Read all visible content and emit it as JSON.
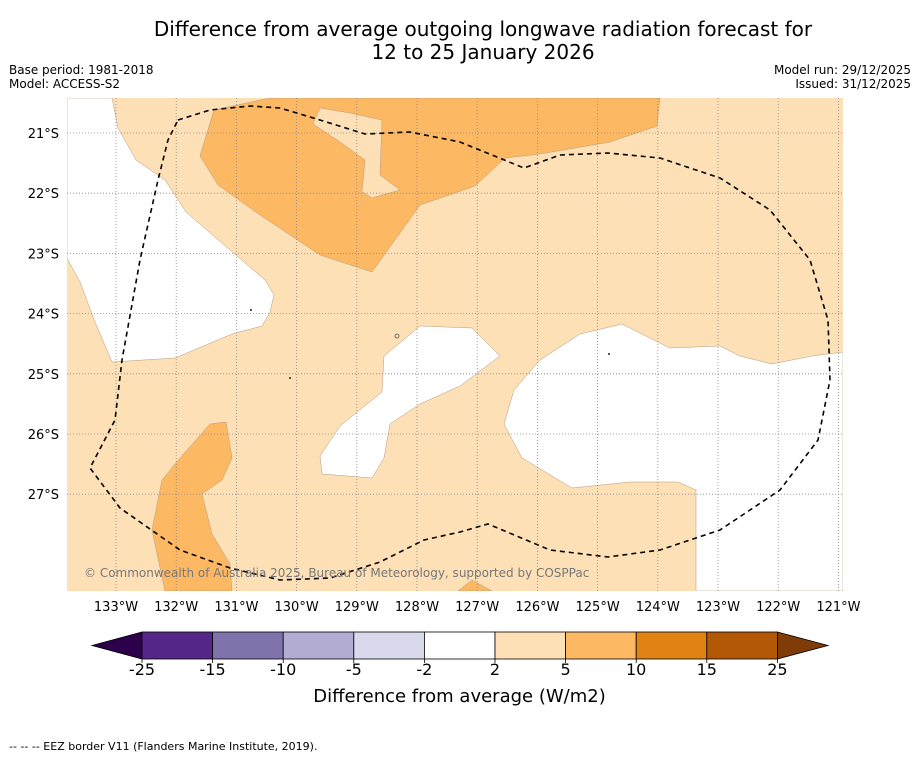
{
  "title_line1": "Difference from average outgoing longwave radiation forecast for",
  "title_line2": "12 to 25 January 2026",
  "meta_left": {
    "base_period": "Base period: 1981-2018",
    "model": "Model: ACCESS-S2"
  },
  "meta_right": {
    "model_run": "Model run: 29/12/2025",
    "issued": "Issued: 31/12/2025"
  },
  "copyright": "© Commonwealth of Australia 2025, Bureau of Meteorology, supported by COSPPac",
  "lat_labels": [
    "21°S",
    "22°S",
    "23°S",
    "24°S",
    "25°S",
    "26°S",
    "27°S"
  ],
  "lon_labels": [
    "133°W",
    "132°W",
    "131°W",
    "130°W",
    "129°W",
    "128°W",
    "127°W",
    "126°W",
    "125°W",
    "124°W",
    "123°W",
    "122°W",
    "121°W"
  ],
  "colorbar": {
    "title": "Difference from average (W/m2)",
    "tick_labels": [
      "-25",
      "-15",
      "-10",
      "-5",
      "-2",
      "2",
      "5",
      "10",
      "15",
      "25"
    ],
    "colors": {
      "below": "#2d004b",
      "bins": [
        "#542788",
        "#8073ac",
        "#b2abd2",
        "#d8daeb",
        "#ffffff",
        "#fee0b6",
        "#fdb863",
        "#e08214",
        "#b35806"
      ],
      "above": "#7f3b08"
    }
  },
  "map_colors": {
    "light": "#fee0b6",
    "medium": "#fdb863",
    "neutral": "#ffffff"
  },
  "footnote": "--  --  -- EEZ border V11 (Flanders Marine Institute, 2019)."
}
